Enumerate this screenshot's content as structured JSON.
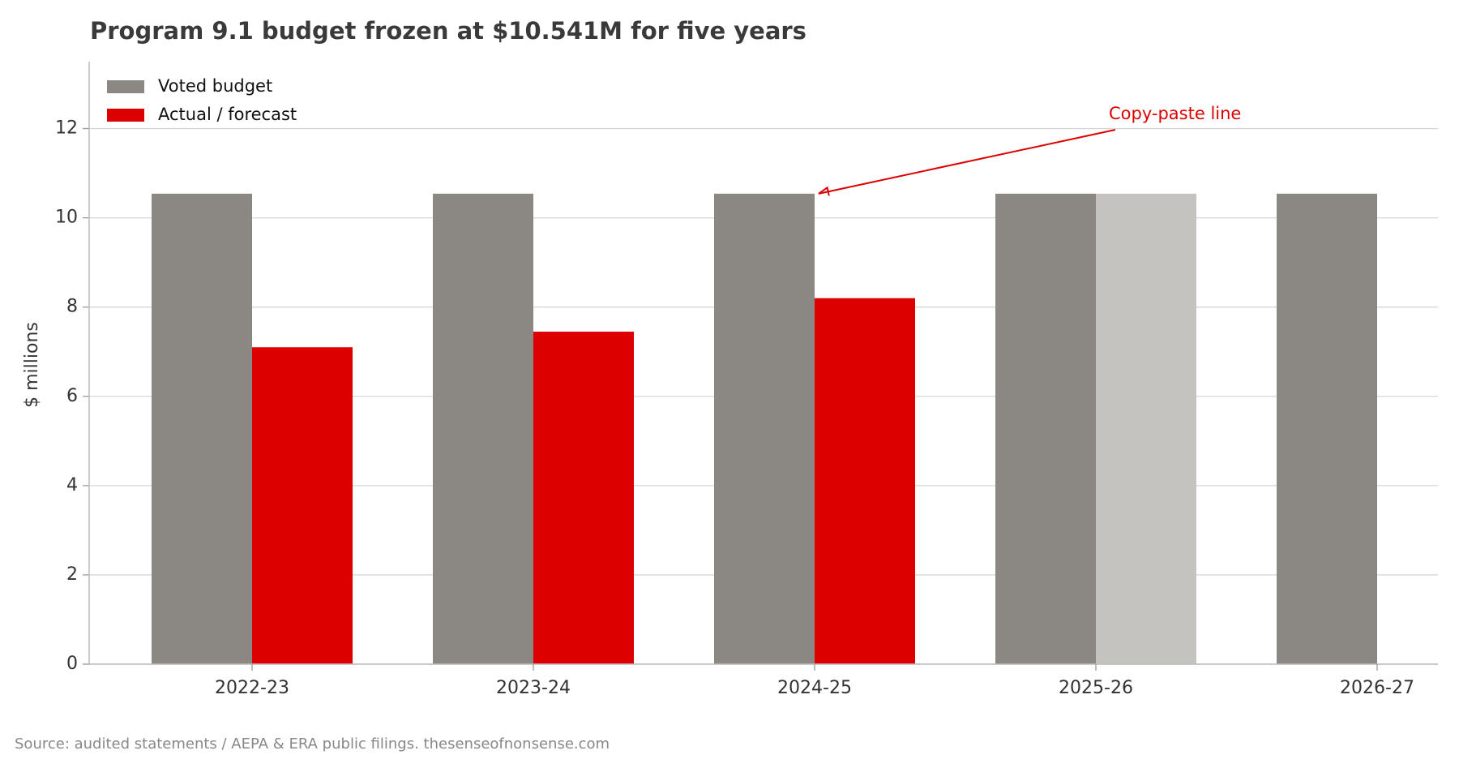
{
  "chart_data": {
    "type": "bar",
    "title": "Program 9.1 budget frozen at $10.541M for five years",
    "y_label": "$ millions",
    "source": "Source: audited statements / AEPA & ERA public filings. thesenseofnonsense.com",
    "categories": [
      "2022-23",
      "2023-24",
      "2024-25",
      "2025-26",
      "2026-27"
    ],
    "series": [
      {
        "name": "Voted budget",
        "color": "#8b8883",
        "values": [
          10.541,
          10.541,
          10.541,
          10.541,
          10.541
        ]
      },
      {
        "name": "Actual / forecast",
        "color": "#dd0000",
        "colors": [
          "#dd0000",
          "#dd0000",
          "#dd0000",
          "#c4c3bf",
          null
        ],
        "values": [
          7.1,
          7.45,
          8.2,
          10.541,
          null
        ]
      }
    ],
    "annotation": {
      "text": "Copy-paste line",
      "x": "2024-25",
      "y": 10.541,
      "color": "#dd0000"
    },
    "ylim": [
      0,
      13.5
    ],
    "yticks": [
      0,
      2,
      4,
      6,
      8,
      10,
      12
    ],
    "grid": true,
    "legend": "upper left"
  }
}
